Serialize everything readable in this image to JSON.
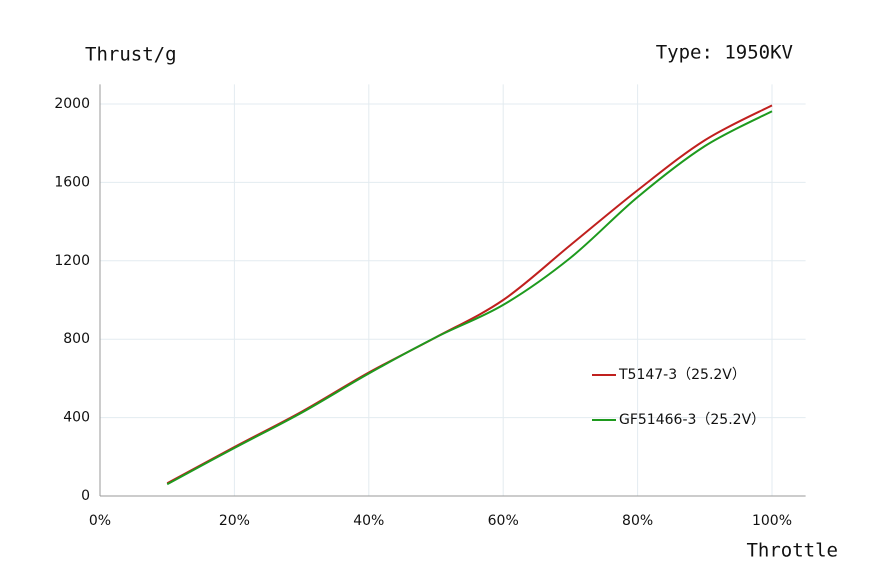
{
  "chart_data": {
    "type": "line",
    "y_label": "Thrust/g",
    "annotation": "Type: 1950KV",
    "x_label": "Throttle",
    "x": [
      10,
      20,
      30,
      40,
      50,
      60,
      70,
      80,
      90,
      100
    ],
    "series": [
      {
        "name": "T5147-3（25.2V）",
        "color": "#c0201e",
        "values": [
          65,
          250,
          430,
          630,
          810,
          1000,
          1280,
          1560,
          1815,
          1993
        ]
      },
      {
        "name": "GF51466-3（25.2V）",
        "color": "#1e9a1e",
        "values": [
          60,
          245,
          425,
          625,
          810,
          975,
          1215,
          1525,
          1785,
          1963
        ]
      }
    ],
    "xlim": [
      0,
      105
    ],
    "xticks": [
      {
        "value": 0,
        "label": "0%"
      },
      {
        "value": 20,
        "label": "20%"
      },
      {
        "value": 40,
        "label": "40%"
      },
      {
        "value": 60,
        "label": "60%"
      },
      {
        "value": 80,
        "label": "80%"
      },
      {
        "value": 100,
        "label": "100%"
      }
    ],
    "ylim": [
      0,
      2100
    ],
    "yticks": [
      0,
      400,
      800,
      1200,
      1600,
      2000
    ],
    "grid": true,
    "legend": "right"
  }
}
